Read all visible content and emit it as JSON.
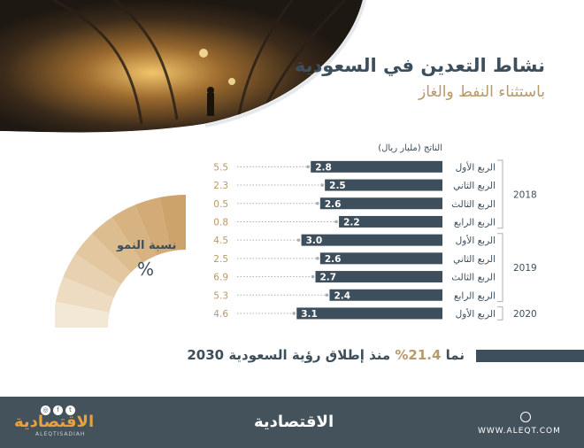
{
  "header": {
    "title": "نشاط التعدين في السعودية",
    "subtitle": "باستثناء النفط والغاز"
  },
  "growth": {
    "label": "نسبة النمو",
    "symbol": "%"
  },
  "summary": {
    "prefix": "نما",
    "highlight": "21.4%",
    "rest": "منذ إطلاق رؤية السعودية 2030"
  },
  "footer": {
    "logo": "الاقتصادية",
    "logo_sub": "ALEQTISADIAH",
    "website": "WWW.ALEQT.COM",
    "social_icons": [
      "twitter-icon",
      "facebook-icon",
      "instagram-icon"
    ]
  },
  "colors": {
    "bar": "#3d4f5c",
    "accent": "#b89968",
    "footer": "#44525c"
  },
  "chart_data": {
    "type": "bar",
    "orientation": "horizontal",
    "ylabel": "الناتج (مليار ريال)",
    "xlim": [
      0,
      3.5
    ],
    "rows": [
      {
        "year": "2018",
        "quarter": "الربع الأول",
        "value": 2.8,
        "growth": 5.5
      },
      {
        "year": "2018",
        "quarter": "الربع الثاني",
        "value": 2.5,
        "growth": 2.3
      },
      {
        "year": "2018",
        "quarter": "الربع الثالث",
        "value": 2.6,
        "growth": 0.5
      },
      {
        "year": "2018",
        "quarter": "الربع الرابع",
        "value": 2.2,
        "growth": 0.8
      },
      {
        "year": "2019",
        "quarter": "الربع الأول",
        "value": 3.0,
        "growth": 4.5
      },
      {
        "year": "2019",
        "quarter": "الربع الثاني",
        "value": 2.6,
        "growth": 2.5
      },
      {
        "year": "2019",
        "quarter": "الربع الثالث",
        "value": 2.7,
        "growth": 6.9
      },
      {
        "year": "2019",
        "quarter": "الربع الرابع",
        "value": 2.4,
        "growth": 5.3
      },
      {
        "year": "2020",
        "quarter": "الربع الأول",
        "value": 3.1,
        "growth": 4.6
      }
    ],
    "years": [
      "2018",
      "2019",
      "2020"
    ]
  }
}
